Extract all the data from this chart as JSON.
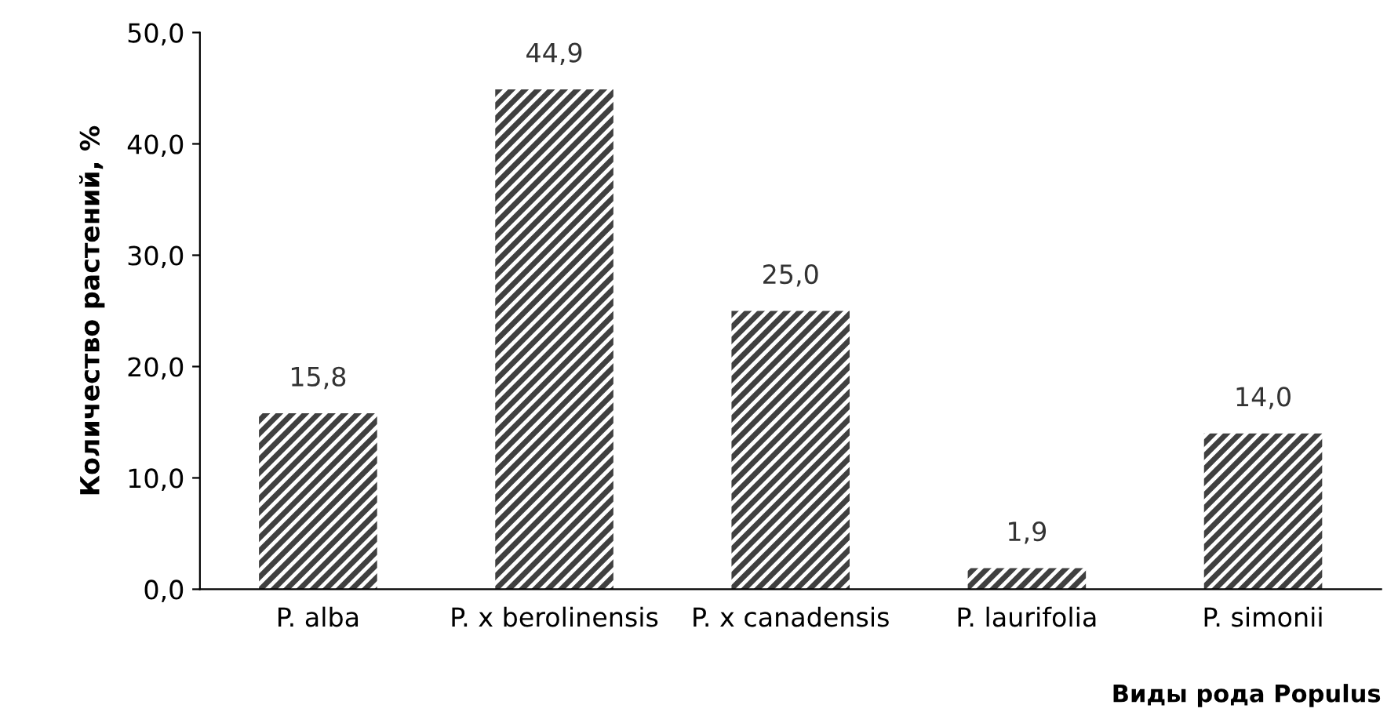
{
  "chart_data": {
    "type": "bar",
    "xlabel": "Виды рода Populus",
    "ylabel": "Количество растений, %",
    "categories": [
      "P. alba",
      "P. x berolinensis",
      "P. x canadensis",
      "P. laurifolia",
      "P. simonii"
    ],
    "values": [
      15.8,
      44.9,
      25.0,
      1.9,
      14.0
    ],
    "value_labels": [
      "15,8",
      "44,9",
      "25,0",
      "1,9",
      "14,0"
    ],
    "color": "#404040",
    "ylim": [
      0,
      50
    ],
    "yticks": [
      {
        "value": 0,
        "label": "0,0"
      },
      {
        "value": 10,
        "label": "10,0"
      },
      {
        "value": 20,
        "label": "20,0"
      },
      {
        "value": 30,
        "label": "30,0"
      },
      {
        "value": 40,
        "label": "40,0"
      },
      {
        "value": 50,
        "label": "50,0"
      }
    ],
    "grid": false,
    "legend": false
  }
}
